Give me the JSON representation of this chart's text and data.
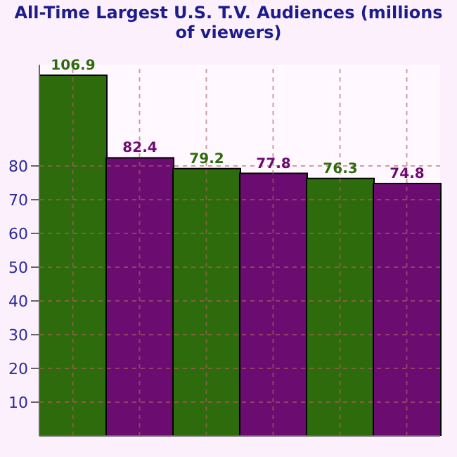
{
  "chart_data": {
    "type": "bar",
    "title": "All-Time Largest U.S. T.V. Audiences (millions of viewers)",
    "categories": [
      null,
      null,
      null,
      null,
      null,
      null
    ],
    "values": [
      106.9,
      82.4,
      79.2,
      77.8,
      76.3,
      74.8
    ],
    "colors": [
      "#2d6b0c",
      "#6b0c70",
      "#2d6b0c",
      "#6b0c70",
      "#2d6b0c",
      "#6b0c70"
    ],
    "ylim": [
      0,
      110
    ],
    "yticks": [
      10,
      20,
      30,
      40,
      50,
      60,
      70,
      80
    ],
    "grid": true,
    "data_labels": true
  }
}
